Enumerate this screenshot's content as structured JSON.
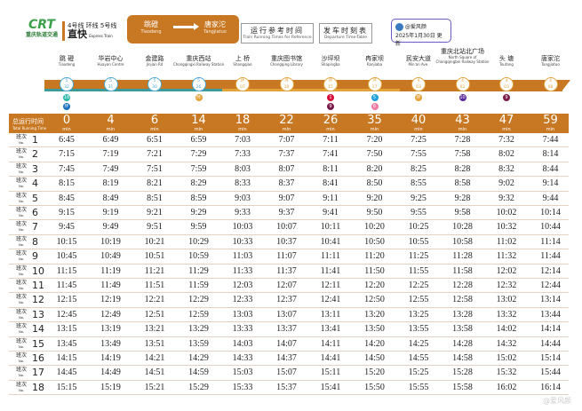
{
  "header": {
    "operator_logo": "CRT",
    "operator": "重庆轨道交通",
    "lines_label": "4号线 环线 5号线",
    "service": "直快",
    "service_en": "Express Train",
    "from": "跳磴",
    "from_en": "Tiaodeng",
    "to": "唐家沱",
    "to_en": "Tangjiatuo",
    "ref_title": "运行参考时间",
    "ref_title_en": "Train Running Times for Reference",
    "dep_title": "发车时刻表",
    "dep_title_en": "Departure Time-Table",
    "author": "@爱风颜",
    "updated": "2025年1月30日 更新"
  },
  "colors": {
    "brand": "#c87822",
    "line5": "#4aa6d8",
    "loop": "#e3a23a"
  },
  "stations": [
    {
      "name": "跳 磴",
      "en": "Tiaodeng",
      "line": "5",
      "code": "32",
      "style": "b",
      "transfers": [
        {
          "l": "18",
          "c": "#2bb7a5"
        },
        {
          "l": "环",
          "c": "#1a6fc0"
        }
      ]
    },
    {
      "name": "华岩中心",
      "en": "Huayan Centre",
      "line": "5",
      "code": "31",
      "style": "b",
      "transfers": []
    },
    {
      "name": "金建路",
      "en": "Jinjian Rd",
      "line": "5",
      "code": "30",
      "style": "b",
      "transfers": []
    },
    {
      "name": "重庆西站",
      "en": "Chongqingxi Railway Station",
      "line": "5",
      "code": "26",
      "style": "b",
      "transfers": [
        {
          "l": "环",
          "c": "#e3a23a"
        }
      ]
    },
    {
      "name": "上 桥",
      "en": "Shangqiao",
      "line": "环",
      "code": "07",
      "style": "o",
      "transfers": []
    },
    {
      "name": "重庆图书馆",
      "en": "Chongqing Library",
      "line": "环",
      "code": "10",
      "style": "o",
      "transfers": []
    },
    {
      "name": "沙坪坝",
      "en": "Shapingba",
      "line": "环",
      "code": "15",
      "style": "o",
      "transfers": [
        {
          "l": "1",
          "c": "#d3123a"
        },
        {
          "l": "9",
          "c": "#7a1b4a"
        }
      ]
    },
    {
      "name": "冉家坝",
      "en": "Ranjiaba",
      "line": "环",
      "code": "17",
      "style": "o",
      "transfers": [
        {
          "l": "5",
          "c": "#1ea0dc"
        },
        {
          "l": "6",
          "c": "#f07aa0"
        }
      ]
    },
    {
      "name": "民安大道",
      "en": "Min'an Ave.",
      "line": "4",
      "code": "03",
      "style": "o",
      "transfers": [
        {
          "l": "环",
          "c": "#e3a23a"
        }
      ]
    },
    {
      "name": "重庆北站北广场",
      "en": "North Square of Chongqingbei Railway Station",
      "line": "4",
      "code": "02",
      "style": "o",
      "transfers": [
        {
          "l": "10",
          "c": "#5a2a9a"
        }
      ]
    },
    {
      "name": "头 塘",
      "en": "Toutang",
      "line": "4",
      "code": "03",
      "style": "o",
      "transfers": [
        {
          "l": "9",
          "c": "#7a1b4a"
        }
      ]
    },
    {
      "name": "唐家沱",
      "en": "Tangjiatuo",
      "line": "4",
      "code": "08",
      "style": "o",
      "transfers": []
    }
  ],
  "table": {
    "label": "总运行时间",
    "label_en": "Total Running Time",
    "unit": "min",
    "trip_label": "班次",
    "trip_label_en": "No.",
    "minutes": [
      "0",
      "4",
      "6",
      "14",
      "18",
      "22",
      "26",
      "35",
      "40",
      "43",
      "47",
      "59"
    ],
    "rows": [
      [
        "6:45",
        "6:49",
        "6:51",
        "6:59",
        "7:03",
        "7:07",
        "7:11",
        "7:20",
        "7:25",
        "7:28",
        "7:32",
        "7:44"
      ],
      [
        "7:15",
        "7:19",
        "7:21",
        "7:29",
        "7:33",
        "7:37",
        "7:41",
        "7:50",
        "7:55",
        "7:58",
        "8:02",
        "8:14"
      ],
      [
        "7:45",
        "7:49",
        "7:51",
        "7:59",
        "8:03",
        "8:07",
        "8:11",
        "8:20",
        "8:25",
        "8:28",
        "8:32",
        "8:44"
      ],
      [
        "8:15",
        "8:19",
        "8:21",
        "8:29",
        "8:33",
        "8:37",
        "8:41",
        "8:50",
        "8:55",
        "8:58",
        "9:02",
        "9:14"
      ],
      [
        "8:45",
        "8:49",
        "8:51",
        "8:59",
        "9:03",
        "9:07",
        "9:11",
        "9:20",
        "9:25",
        "9:28",
        "9:32",
        "9:44"
      ],
      [
        "9:15",
        "9:19",
        "9:21",
        "9:29",
        "9:33",
        "9:37",
        "9:41",
        "9:50",
        "9:55",
        "9:58",
        "10:02",
        "10:14"
      ],
      [
        "9:45",
        "9:49",
        "9:51",
        "9:59",
        "10:03",
        "10:07",
        "10:11",
        "10:20",
        "10:25",
        "10:28",
        "10:32",
        "10:44"
      ],
      [
        "10:15",
        "10:19",
        "10:21",
        "10:29",
        "10:33",
        "10:37",
        "10:41",
        "10:50",
        "10:55",
        "10:58",
        "11:02",
        "11:14"
      ],
      [
        "10:45",
        "10:49",
        "10:51",
        "10:59",
        "11:03",
        "11:07",
        "11:11",
        "11:20",
        "11:25",
        "11:28",
        "11:32",
        "11:44"
      ],
      [
        "11:15",
        "11:19",
        "11:21",
        "11:29",
        "11:33",
        "11:37",
        "11:41",
        "11:50",
        "11:55",
        "11:58",
        "12:02",
        "12:14"
      ],
      [
        "11:45",
        "11:49",
        "11:51",
        "11:59",
        "12:03",
        "12:07",
        "12:11",
        "12:20",
        "12:25",
        "12:28",
        "12:32",
        "12:44"
      ],
      [
        "12:15",
        "12:19",
        "12:21",
        "12:29",
        "12:33",
        "12:37",
        "12:41",
        "12:50",
        "12:55",
        "12:58",
        "13:02",
        "13:14"
      ],
      [
        "12:45",
        "12:49",
        "12:51",
        "12:59",
        "13:03",
        "13:07",
        "13:11",
        "13:20",
        "13:25",
        "13:28",
        "13:32",
        "13:44"
      ],
      [
        "13:15",
        "13:19",
        "13:21",
        "13:29",
        "13:33",
        "13:37",
        "13:41",
        "13:50",
        "13:55",
        "13:58",
        "14:02",
        "14:14"
      ],
      [
        "13:45",
        "13:49",
        "13:51",
        "13:59",
        "14:03",
        "14:07",
        "14:11",
        "14:20",
        "14:25",
        "14:28",
        "14:32",
        "14:44"
      ],
      [
        "14:15",
        "14:19",
        "14:21",
        "14:29",
        "14:33",
        "14:37",
        "14:41",
        "14:50",
        "14:55",
        "14:58",
        "15:02",
        "15:14"
      ],
      [
        "14:45",
        "14:49",
        "14:51",
        "14:59",
        "15:03",
        "15:07",
        "15:11",
        "15:20",
        "15:25",
        "15:28",
        "15:32",
        "15:44"
      ],
      [
        "15:15",
        "15:19",
        "15:21",
        "15:29",
        "15:33",
        "15:37",
        "15:41",
        "15:50",
        "15:55",
        "15:58",
        "16:02",
        "16:14"
      ]
    ]
  },
  "watermark": "@爱风颜"
}
